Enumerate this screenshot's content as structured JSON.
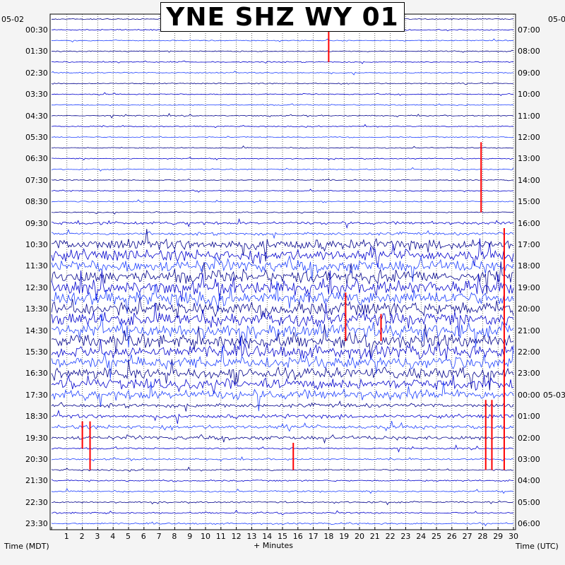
{
  "title": "YNE SHZ WY 01",
  "left_date": "05-02",
  "right_date": "05-0",
  "right_date_mid": "05-03",
  "xlabel": "+ Minutes",
  "left_axis_label": "Time (MDT)",
  "right_axis_label": "Time (UTC)",
  "colors": {
    "trace_dark": "#00008b",
    "trace_mid": "#0000cd",
    "trace_light": "#1e40ff",
    "clip": "#ff0000",
    "frame": "#000000"
  },
  "chart_data": {
    "type": "helicorder",
    "station": "YNE",
    "channel": "SHZ",
    "network": "WY",
    "location": "01",
    "x_ticks": [
      1,
      2,
      3,
      4,
      5,
      6,
      7,
      8,
      9,
      10,
      11,
      12,
      13,
      14,
      15,
      16,
      17,
      18,
      19,
      20,
      21,
      22,
      23,
      24,
      25,
      26,
      27,
      28,
      29,
      30
    ],
    "xlim": [
      0,
      30
    ],
    "left_hour_labels": [
      "00:30",
      "01:30",
      "02:30",
      "03:30",
      "04:30",
      "05:30",
      "06:30",
      "07:30",
      "08:30",
      "09:30",
      "10:30",
      "11:30",
      "12:30",
      "13:30",
      "14:30",
      "15:30",
      "16:30",
      "17:30",
      "18:30",
      "19:30",
      "20:30",
      "21:30",
      "22:30",
      "23:30"
    ],
    "right_hour_labels": [
      "07:00",
      "08:00",
      "09:00",
      "10:00",
      "11:00",
      "12:00",
      "13:00",
      "14:00",
      "15:00",
      "16:00",
      "17:00",
      "18:00",
      "19:00",
      "20:00",
      "21:00",
      "22:00",
      "23:00",
      "00:00",
      "01:00",
      "02:00",
      "03:00",
      "04:00",
      "05:00",
      "06:00"
    ],
    "rows_per_hour": 2,
    "grid": true
  }
}
